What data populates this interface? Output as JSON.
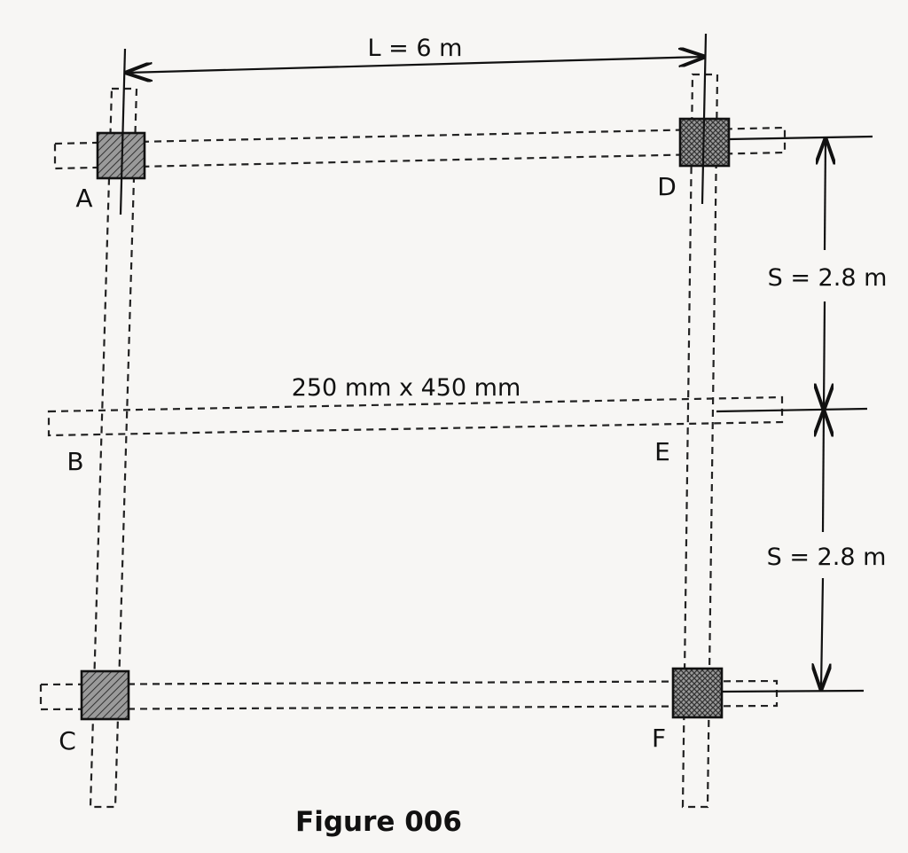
{
  "diagram": {
    "dimensions": {
      "span": "L = 6 m",
      "spacing_top": "S = 2.8 m",
      "spacing_bottom": "S = 2.8 m",
      "beam_size": "250 mm x 450 mm"
    },
    "nodes": {
      "a": "A",
      "b": "B",
      "c": "C",
      "d": "D",
      "e": "E",
      "f": "F"
    },
    "caption": "Figure 006"
  }
}
